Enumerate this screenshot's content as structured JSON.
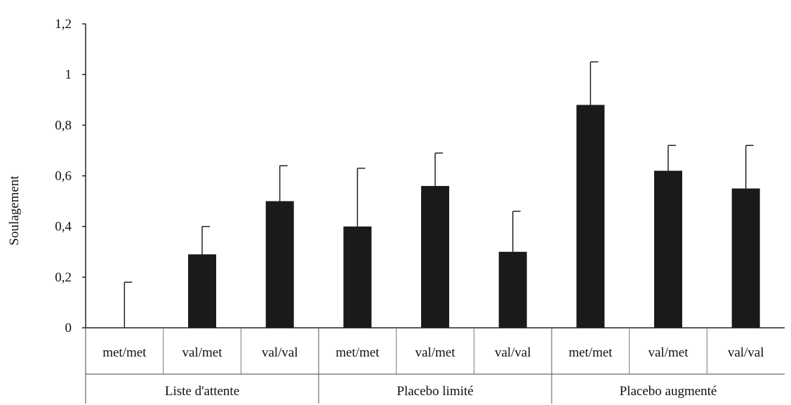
{
  "chart_data": {
    "type": "bar",
    "ylabel": "Soulagement",
    "ylim": [
      0,
      1.2
    ],
    "yticks": [
      0,
      0.2,
      0.4,
      0.6,
      0.8,
      1,
      1.2
    ],
    "ytick_labels": [
      "0",
      "0,2",
      "0,4",
      "0,6",
      "0,8",
      "1",
      "1,2"
    ],
    "groups": [
      {
        "label": "Liste d'attente",
        "categories": [
          "met/met",
          "val/met",
          "val/val"
        ],
        "values": [
          0.0,
          0.29,
          0.5
        ],
        "error_upper": [
          0.18,
          0.4,
          0.64
        ]
      },
      {
        "label": "Placebo limité",
        "categories": [
          "met/met",
          "val/met",
          "val/val"
        ],
        "values": [
          0.4,
          0.56,
          0.3
        ],
        "error_upper": [
          0.63,
          0.69,
          0.46
        ]
      },
      {
        "label": "Placebo augmenté",
        "categories": [
          "met/met",
          "val/met",
          "val/val"
        ],
        "values": [
          0.88,
          0.62,
          0.55
        ],
        "error_upper": [
          1.05,
          0.72,
          0.72
        ]
      }
    ],
    "bar_color": "#1a1a1a",
    "grid": false,
    "legend": "none"
  }
}
